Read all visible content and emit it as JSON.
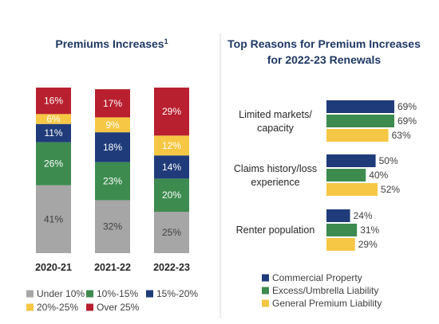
{
  "colors": {
    "under_10": "#a6a6a6",
    "10_15": "#3d8b4f",
    "15_20": "#1f3b7a",
    "20_25": "#f6c744",
    "over_25": "#b8202f",
    "commercial_property": "#1f3b7a",
    "excess_umbrella": "#3d8b4f",
    "general_premium": "#f6c744",
    "title": "#1f3864"
  },
  "chart_data": [
    {
      "type": "bar",
      "stacked": true,
      "title": "Premiums Increases",
      "title_superscript": "1",
      "categories": [
        "2020-21",
        "2021-22",
        "2022-23"
      ],
      "ylim": [
        0,
        100
      ],
      "series": [
        {
          "name": "Under 10%",
          "key": "under_10",
          "values": [
            41,
            32,
            25
          ]
        },
        {
          "name": "10%-15%",
          "key": "10_15",
          "values": [
            26,
            23,
            20
          ]
        },
        {
          "name": "15%-20%",
          "key": "15_20",
          "values": [
            11,
            18,
            14
          ]
        },
        {
          "name": "20%-25%",
          "key": "20_25",
          "values": [
            6,
            9,
            12
          ]
        },
        {
          "name": "Over 25%",
          "key": "over_25",
          "values": [
            16,
            17,
            29
          ]
        }
      ],
      "labels": [
        [
          "41%",
          "26%",
          "11%",
          "6%",
          "16%"
        ],
        [
          "32%",
          "23%",
          "18%",
          "9%",
          "17%"
        ],
        [
          "25%",
          "20%",
          "14%",
          "12%",
          "29%"
        ]
      ],
      "legend": [
        "Under 10%",
        "10%-15%",
        "15%-20%",
        "20%-25%",
        "Over 25%"
      ],
      "legend_placement": "bottom",
      "grid": false
    },
    {
      "type": "bar",
      "orientation": "horizontal",
      "title": "Top Reasons for Premium Increases",
      "title_line2": "for 2022-23 Renewals",
      "categories": [
        {
          "line1": "Limited markets/",
          "line2": "capacity"
        },
        {
          "line1": "Claims history/loss",
          "line2": "experience"
        },
        {
          "line1": "Renter population",
          "line2": ""
        }
      ],
      "xlim": [
        0,
        100
      ],
      "series": [
        {
          "name": "Commercial Property",
          "key": "commercial_property",
          "values": [
            69,
            50,
            24
          ]
        },
        {
          "name": "Excess/Umbrella Liability",
          "key": "excess_umbrella",
          "values": [
            69,
            40,
            31
          ]
        },
        {
          "name": "General Premium Liability",
          "key": "general_premium",
          "values": [
            63,
            52,
            29
          ]
        }
      ],
      "legend_placement": "bottom",
      "grid": false
    }
  ]
}
